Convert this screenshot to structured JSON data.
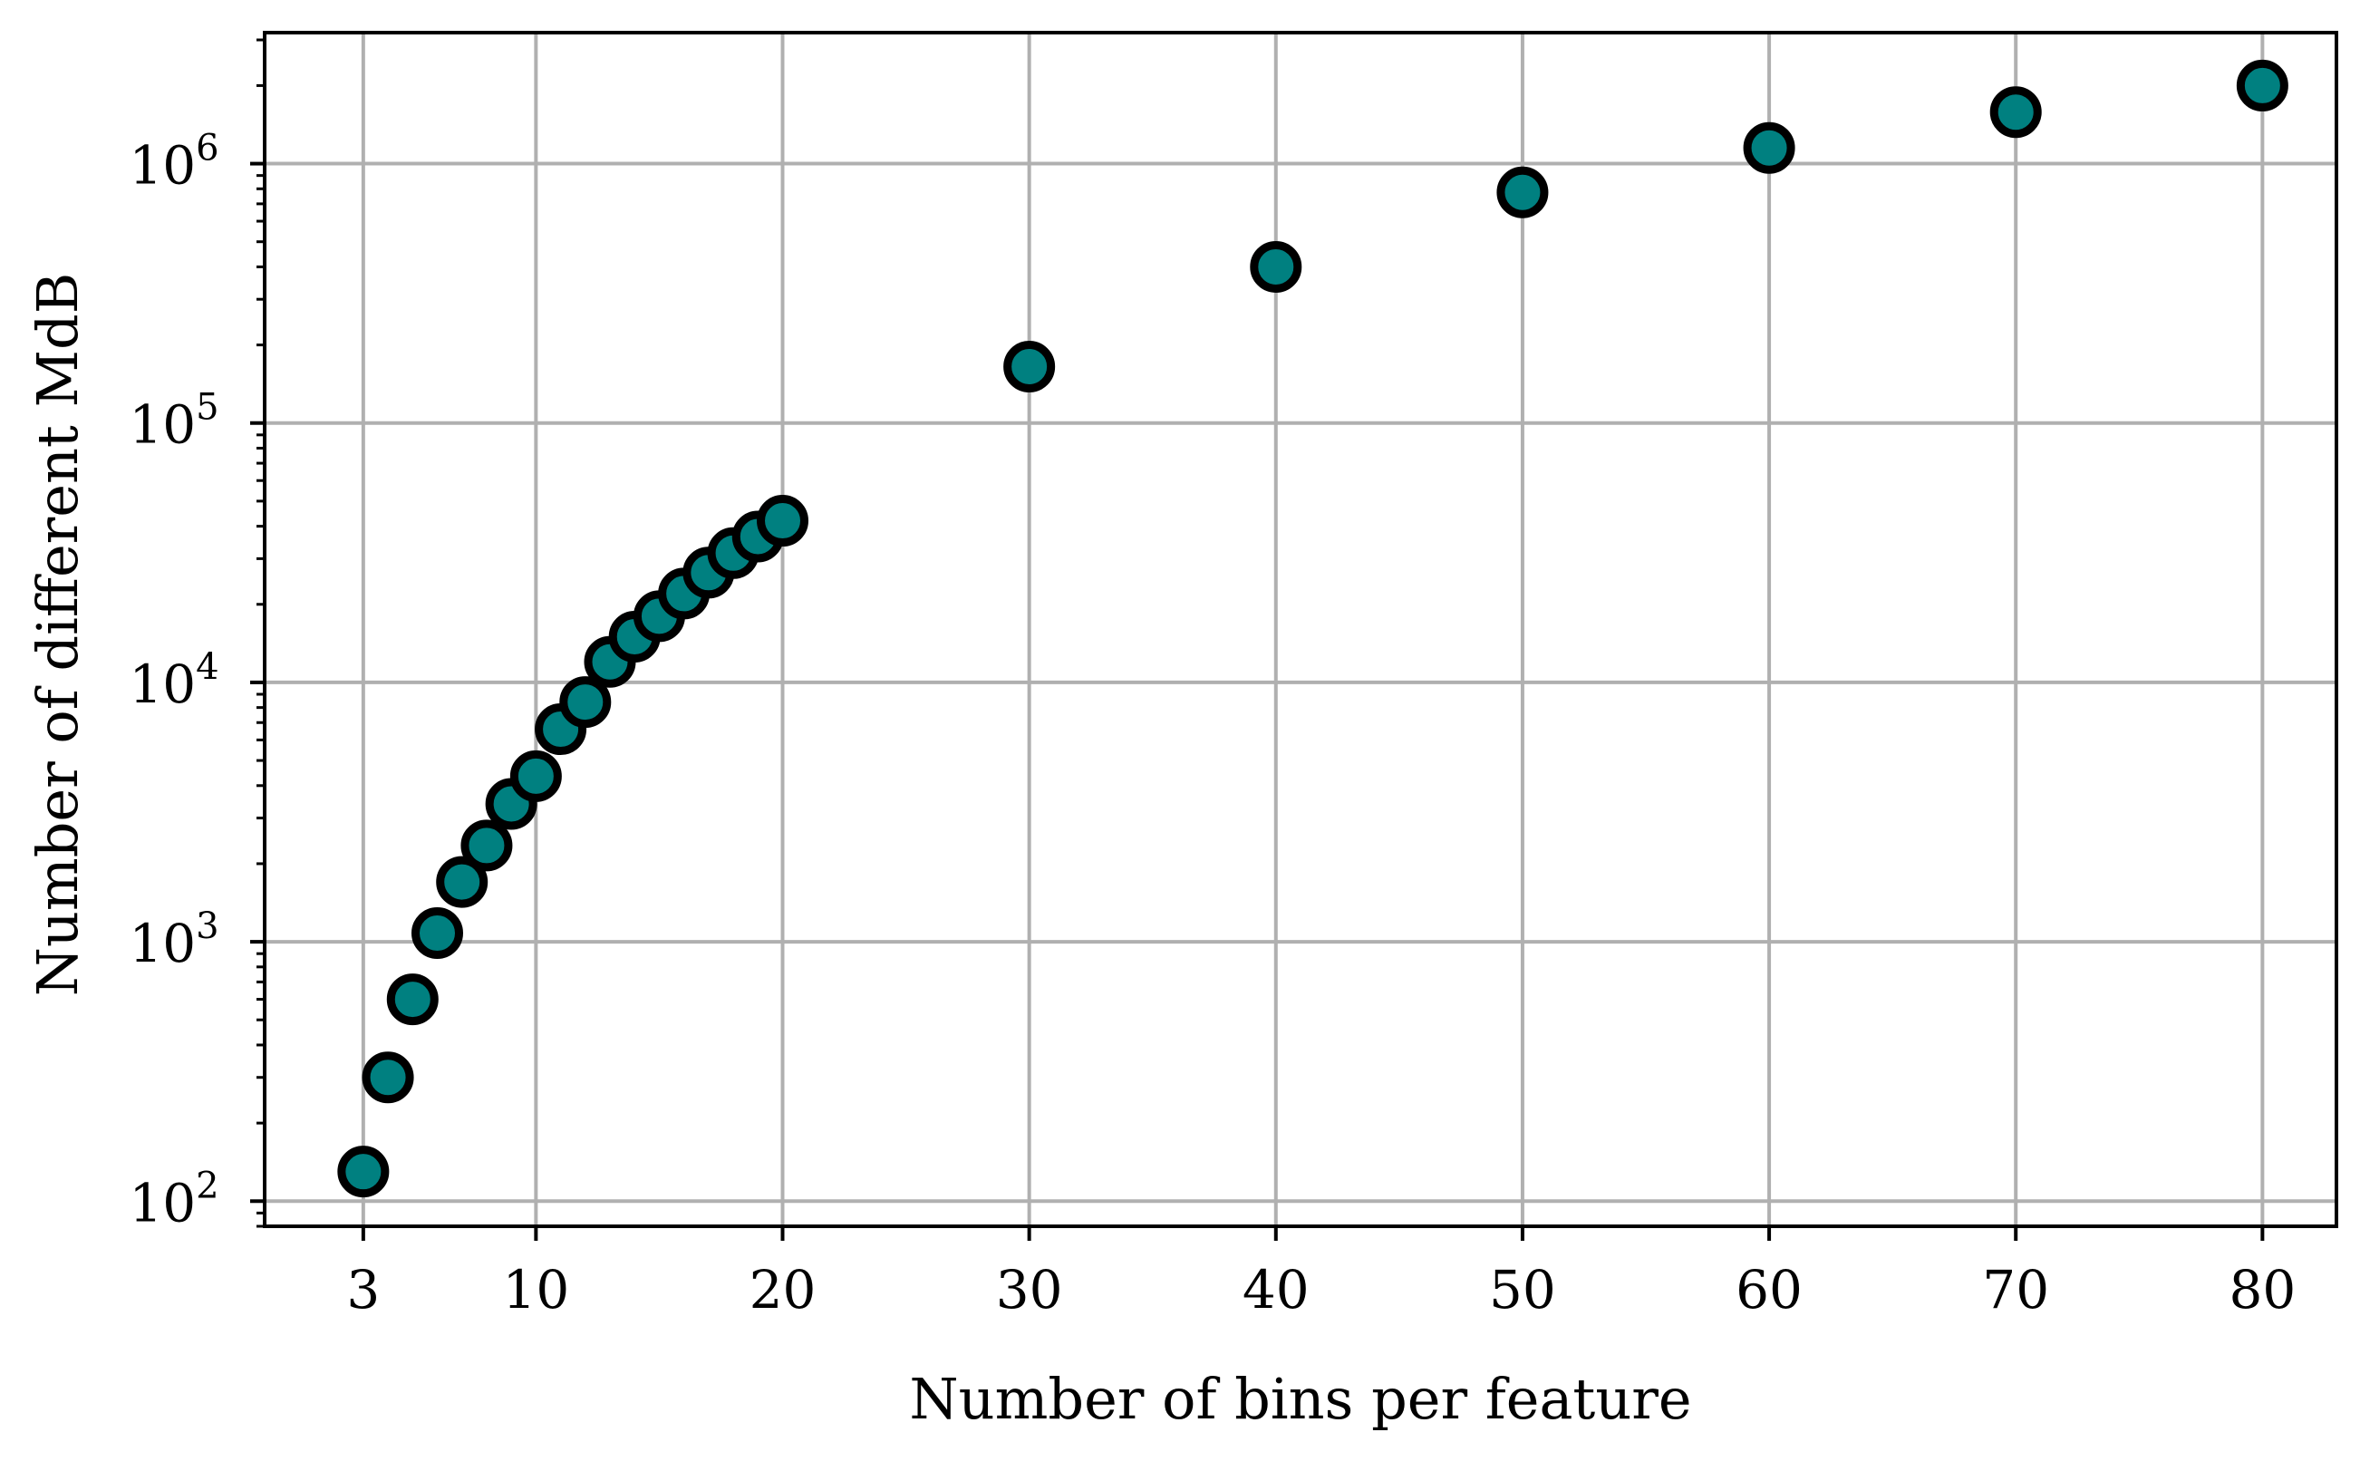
{
  "chart_data": {
    "type": "scatter",
    "xlabel": "Number of bins per feature",
    "ylabel": "Number of different MdB",
    "x_ticks": [
      3,
      10,
      20,
      30,
      40,
      50,
      60,
      70,
      80
    ],
    "x_tick_labels": [
      "3",
      "10",
      "20",
      "30",
      "40",
      "50",
      "60",
      "70",
      "80"
    ],
    "y_scale": "log",
    "y_ticks": [
      100,
      1000,
      10000,
      100000,
      1000000
    ],
    "y_tick_labels": [
      {
        "base": "10",
        "exp": "2"
      },
      {
        "base": "10",
        "exp": "3"
      },
      {
        "base": "10",
        "exp": "4"
      },
      {
        "base": "10",
        "exp": "5"
      },
      {
        "base": "10",
        "exp": "6"
      }
    ],
    "xlim": [
      -1,
      83
    ],
    "ylim": [
      80,
      3200000
    ],
    "grid": true,
    "marker_color": "#008080",
    "marker_edge_color": "#000000",
    "grid_color": "#b0b0b0",
    "series": [
      {
        "x": [
          3,
          4,
          5,
          6,
          7,
          8,
          9,
          10,
          11,
          12,
          13,
          14,
          15,
          16,
          17,
          18,
          19,
          20,
          30,
          40,
          50,
          60,
          70,
          80
        ],
        "y": [
          130,
          300,
          600,
          1080,
          1700,
          2350,
          3400,
          4350,
          6600,
          8400,
          12000,
          15000,
          18000,
          22000,
          26500,
          31500,
          36500,
          42000,
          165000,
          400000,
          775000,
          1150000,
          1580000,
          2000000
        ]
      }
    ]
  }
}
